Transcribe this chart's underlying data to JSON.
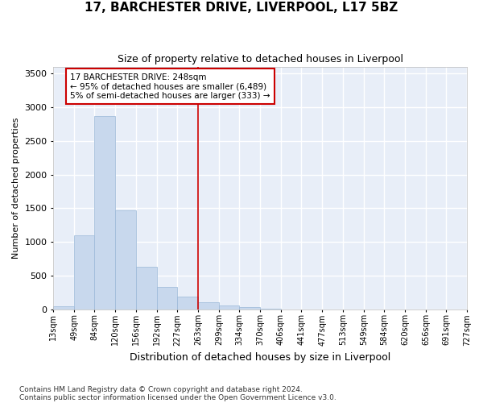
{
  "title": "17, BARCHESTER DRIVE, LIVERPOOL, L17 5BZ",
  "subtitle": "Size of property relative to detached houses in Liverpool",
  "xlabel": "Distribution of detached houses by size in Liverpool",
  "ylabel": "Number of detached properties",
  "bar_color": "#c8d8ed",
  "bar_edge_color": "#9ab8d8",
  "background_color": "#e8eef8",
  "grid_color": "#ffffff",
  "annotation_box_color": "#cc0000",
  "property_line_color": "#cc0000",
  "property_size": 248,
  "annotation_title": "17 BARCHESTER DRIVE: 248sqm",
  "annotation_line1": "← 95% of detached houses are smaller (6,489)",
  "annotation_line2": "5% of semi-detached houses are larger (333) →",
  "footnote1": "Contains HM Land Registry data © Crown copyright and database right 2024.",
  "footnote2": "Contains public sector information licensed under the Open Government Licence v3.0.",
  "bins": [
    13,
    49,
    84,
    120,
    156,
    192,
    227,
    263,
    299,
    334,
    370,
    406,
    441,
    477,
    513,
    549,
    584,
    620,
    656,
    691,
    727
  ],
  "counts": [
    45,
    1095,
    2870,
    1470,
    630,
    330,
    190,
    105,
    60,
    35,
    12,
    0,
    0,
    0,
    0,
    0,
    0,
    0,
    0,
    0
  ],
  "ylim": [
    0,
    3600
  ],
  "yticks": [
    0,
    500,
    1000,
    1500,
    2000,
    2500,
    3000,
    3500
  ]
}
